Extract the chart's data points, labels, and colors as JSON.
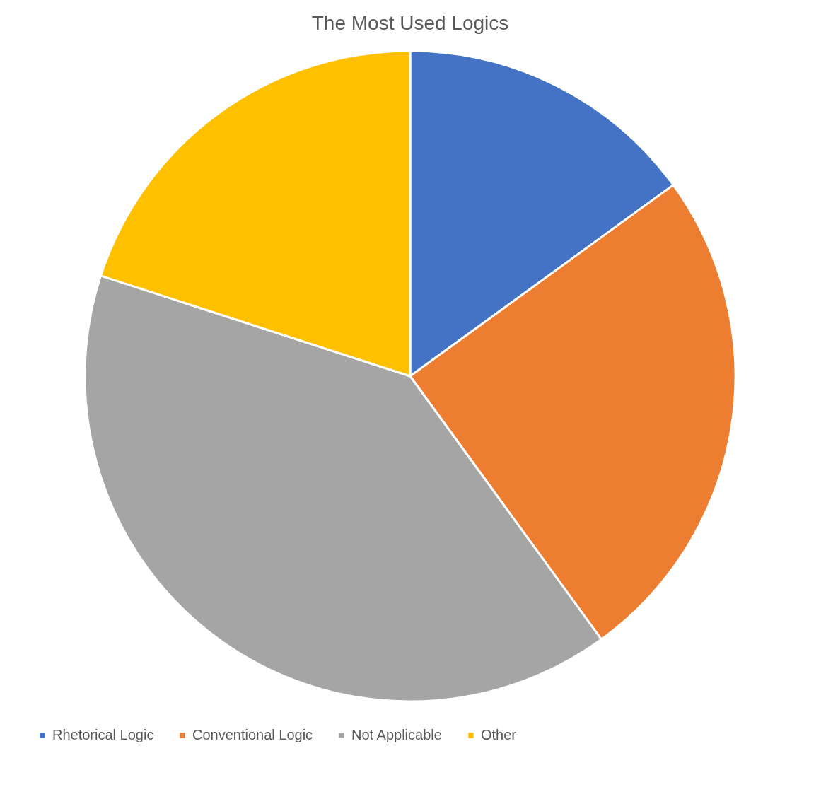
{
  "chart_data": {
    "type": "pie",
    "title": "The Most Used Logics",
    "categories": [
      "Rhetorical Logic",
      "Conventional Logic",
      "Not Applicable",
      "Other"
    ],
    "values": [
      15,
      25,
      40,
      20
    ],
    "colors": [
      "#4472c4",
      "#ed7d31",
      "#a5a5a5",
      "#ffc000"
    ],
    "legend": "bottom"
  }
}
